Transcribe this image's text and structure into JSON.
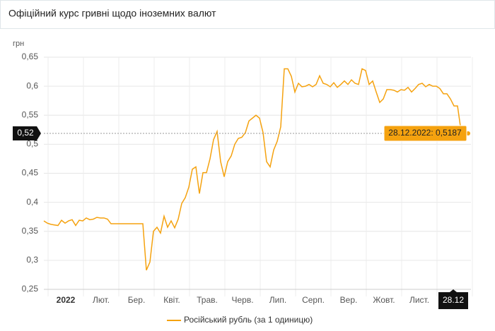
{
  "header": {
    "title": "Офіційний курс гривні щодо іноземних валют"
  },
  "chart_data": {
    "type": "line",
    "y_axis_label": "грн",
    "ylim": [
      0.25,
      0.65
    ],
    "yticks": [
      {
        "value": 0.25,
        "label": "0,25"
      },
      {
        "value": 0.3,
        "label": "0,3"
      },
      {
        "value": 0.35,
        "label": "0,35"
      },
      {
        "value": 0.4,
        "label": "0,4"
      },
      {
        "value": 0.45,
        "label": "0,45"
      },
      {
        "value": 0.5,
        "label": "0,5"
      },
      {
        "value": 0.55,
        "label": "0,55"
      },
      {
        "value": 0.6,
        "label": "0,6"
      },
      {
        "value": 0.65,
        "label": "0,65"
      }
    ],
    "xticks": [
      "2022",
      "Лют.",
      "Бер.",
      "Квіт.",
      "Трав.",
      "Черв.",
      "Лип.",
      "Серп.",
      "Вер.",
      "Жовт.",
      "Лист."
    ],
    "grid": true,
    "series": [
      {
        "name": "Російський рубль (за 1 одиницю)",
        "color": "#f5a20f",
        "values": [
          0.368,
          0.364,
          0.362,
          0.361,
          0.36,
          0.369,
          0.364,
          0.368,
          0.37,
          0.36,
          0.369,
          0.368,
          0.373,
          0.37,
          0.371,
          0.374,
          0.373,
          0.373,
          0.371,
          0.363,
          0.363,
          0.363,
          0.363,
          0.363,
          0.363,
          0.363,
          0.363,
          0.363,
          0.363,
          0.283,
          0.297,
          0.35,
          0.357,
          0.347,
          0.376,
          0.357,
          0.368,
          0.356,
          0.371,
          0.398,
          0.408,
          0.426,
          0.457,
          0.461,
          0.415,
          0.451,
          0.451,
          0.475,
          0.508,
          0.522,
          0.47,
          0.444,
          0.47,
          0.48,
          0.5,
          0.51,
          0.512,
          0.52,
          0.54,
          0.545,
          0.55,
          0.545,
          0.52,
          0.47,
          0.461,
          0.49,
          0.505,
          0.53,
          0.63,
          0.63,
          0.617,
          0.59,
          0.605,
          0.599,
          0.6,
          0.603,
          0.599,
          0.603,
          0.618,
          0.605,
          0.603,
          0.599,
          0.606,
          0.598,
          0.603,
          0.609,
          0.603,
          0.611,
          0.605,
          0.603,
          0.63,
          0.627,
          0.603,
          0.609,
          0.59,
          0.572,
          0.578,
          0.594,
          0.594,
          0.593,
          0.59,
          0.594,
          0.593,
          0.598,
          0.59,
          0.596,
          0.603,
          0.605,
          0.599,
          0.603,
          0.6,
          0.6,
          0.596,
          0.587,
          0.587,
          0.578,
          0.566,
          0.566,
          0.523,
          0.515,
          0.5187
        ]
      }
    ],
    "crosshair": {
      "y_label": "0,52",
      "x_label": "28.12",
      "tooltip": "28.12.2022: 0,5187"
    }
  }
}
